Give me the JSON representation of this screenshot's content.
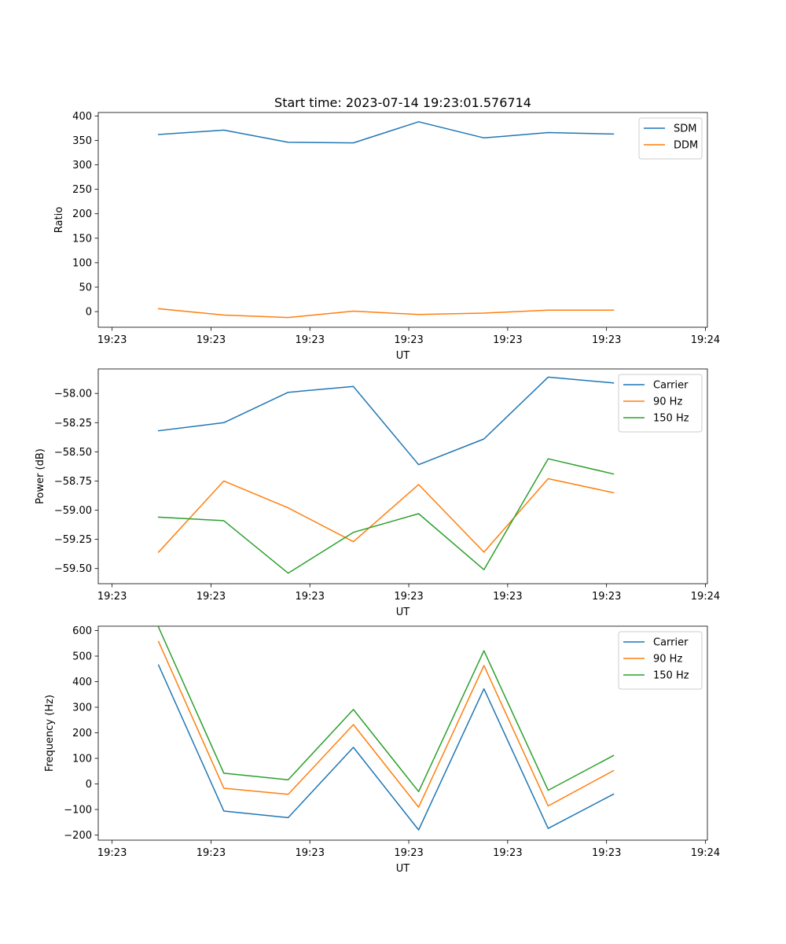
{
  "chart_data": [
    {
      "type": "line",
      "title": "Start time: 2023-07-14 19:23:01.576714",
      "xlabel": "UT",
      "ylabel": "Ratio",
      "x_ticks": [
        "19:23",
        "19:23",
        "19:23",
        "19:23",
        "19:23",
        "19:23",
        "19:24"
      ],
      "x_tick_values": [
        0,
        1,
        2,
        3,
        4,
        5,
        6
      ],
      "xlim": [
        -0.14,
        6.02
      ],
      "x": [
        0.47,
        1.13,
        1.78,
        2.44,
        3.1,
        3.76,
        4.41,
        5.07
      ],
      "ylim": [
        -32,
        407
      ],
      "y_ticks": [
        0,
        50,
        100,
        150,
        200,
        250,
        300,
        350,
        400
      ],
      "y_tick_labels": [
        "0",
        "50",
        "100",
        "150",
        "200",
        "250",
        "300",
        "350",
        "400"
      ],
      "legend": "top-right",
      "series": [
        {
          "name": "SDM",
          "color": "#1f77b4",
          "values": [
            362,
            371,
            346,
            345,
            388,
            355,
            366,
            363
          ]
        },
        {
          "name": "DDM",
          "color": "#ff7f0e",
          "values": [
            6,
            -7,
            -12,
            1,
            -6,
            -3,
            3,
            3
          ]
        }
      ]
    },
    {
      "type": "line",
      "title": "",
      "xlabel": "UT",
      "ylabel": "Power (dB)",
      "x_ticks": [
        "19:23",
        "19:23",
        "19:23",
        "19:23",
        "19:23",
        "19:23",
        "19:24"
      ],
      "x_tick_values": [
        0,
        1,
        2,
        3,
        4,
        5,
        6
      ],
      "xlim": [
        -0.14,
        6.02
      ],
      "x": [
        0.47,
        1.13,
        1.78,
        2.44,
        3.1,
        3.76,
        4.41,
        5.07
      ],
      "ylim": [
        -59.63,
        -57.79
      ],
      "y_ticks": [
        -59.5,
        -59.25,
        -59.0,
        -58.75,
        -58.5,
        -58.25,
        -58.0
      ],
      "y_tick_labels": [
        "−59.50",
        "−59.25",
        "−59.00",
        "−58.75",
        "−58.50",
        "−58.25",
        "−58.00"
      ],
      "legend": "top-right",
      "series": [
        {
          "name": "Carrier",
          "color": "#1f77b4",
          "values": [
            -58.32,
            -58.25,
            -57.99,
            -57.94,
            -58.61,
            -58.39,
            -57.86,
            -57.91
          ]
        },
        {
          "name": "90 Hz",
          "color": "#ff7f0e",
          "values": [
            -59.36,
            -58.75,
            -58.98,
            -59.27,
            -58.78,
            -59.36,
            -58.73,
            -58.85
          ]
        },
        {
          "name": "150 Hz",
          "color": "#2ca02c",
          "values": [
            -59.06,
            -59.09,
            -59.54,
            -59.19,
            -59.03,
            -59.51,
            -58.56,
            -58.69
          ]
        }
      ]
    },
    {
      "type": "line",
      "title": "",
      "xlabel": "UT",
      "ylabel": "Frequency (Hz)",
      "x_ticks": [
        "19:23",
        "19:23",
        "19:23",
        "19:23",
        "19:23",
        "19:23",
        "19:24"
      ],
      "x_tick_values": [
        0,
        1,
        2,
        3,
        4,
        5,
        6
      ],
      "xlim": [
        -0.14,
        6.02
      ],
      "x": [
        0.47,
        1.13,
        1.78,
        2.44,
        3.1,
        3.76,
        4.41,
        5.07
      ],
      "ylim": [
        -220,
        617
      ],
      "y_ticks": [
        -200,
        -100,
        0,
        100,
        200,
        300,
        400,
        500,
        600
      ],
      "y_tick_labels": [
        "−200",
        "−100",
        "0",
        "100",
        "200",
        "300",
        "400",
        "500",
        "600"
      ],
      "legend": "top-right",
      "series": [
        {
          "name": "Carrier",
          "color": "#1f77b4",
          "values": [
            465,
            -106,
            -132,
            143,
            -180,
            372,
            -174,
            -40
          ]
        },
        {
          "name": "90 Hz",
          "color": "#ff7f0e",
          "values": [
            557,
            -17,
            -41,
            232,
            -91,
            463,
            -86,
            52
          ]
        },
        {
          "name": "150 Hz",
          "color": "#2ca02c",
          "values": [
            613,
            42,
            16,
            291,
            -30,
            521,
            -25,
            111
          ]
        }
      ]
    }
  ]
}
